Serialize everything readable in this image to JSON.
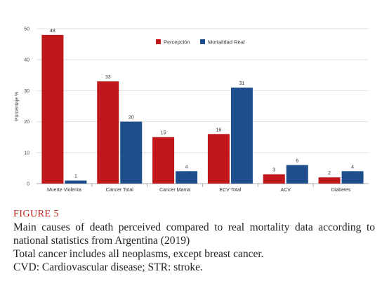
{
  "chart_data": {
    "type": "bar",
    "categories": [
      "Muerte Violenta",
      "Cancer Total",
      "Cancer Mama",
      "ECV Total",
      "ACV",
      "Diabetes"
    ],
    "series": [
      {
        "name": "Percepción",
        "color": "#c0171a",
        "values": [
          48,
          33,
          15,
          16,
          3,
          2
        ]
      },
      {
        "name": "Mortalidad Real",
        "color": "#1f4e8c",
        "values": [
          1,
          20,
          4,
          31,
          6,
          4
        ]
      }
    ],
    "ylabel": "Porcentaje %",
    "ylim": [
      0,
      50
    ],
    "yticks": [
      0,
      10,
      20,
      30,
      40,
      50
    ],
    "grid": true,
    "legend_position": "top-right"
  },
  "caption": {
    "figure_label": "FIGURE 5",
    "main": "Main causes of death perceived compared to real mortality data according to national statistics from Argentina (2019)",
    "note1": "Total cancer includes all neoplasms, except breast cancer.",
    "note2": "CVD: Cardiovascular disease; STR: stroke."
  }
}
